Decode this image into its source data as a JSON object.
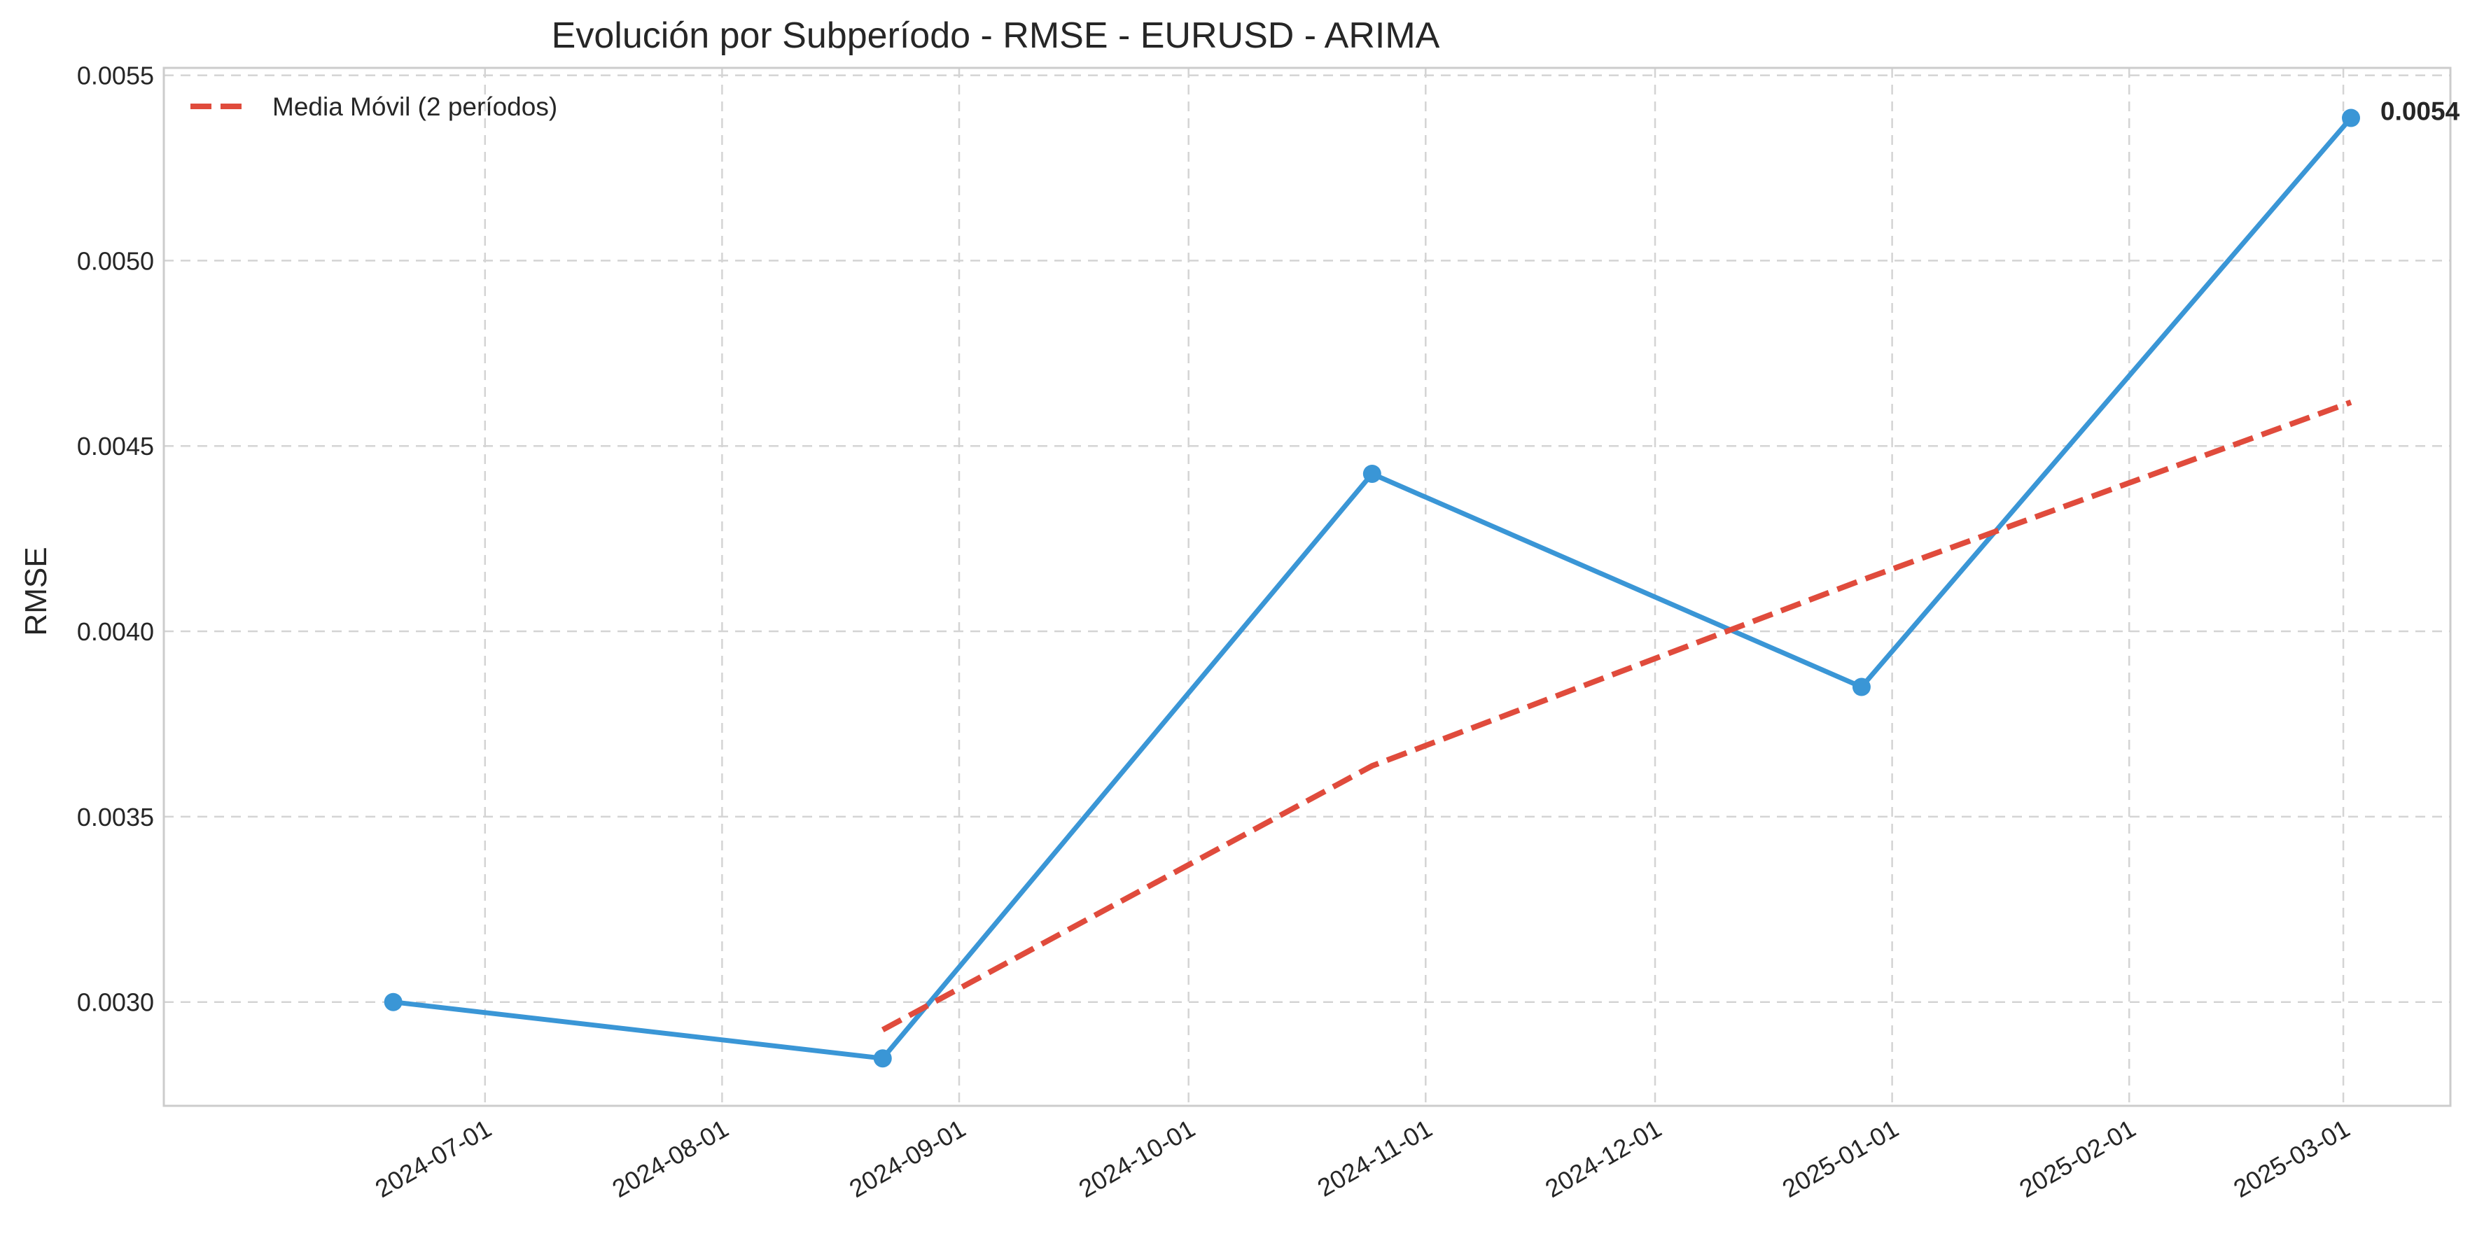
{
  "chart_data": {
    "type": "line",
    "title": "Evolución por Subperíodo - RMSE - EURUSD - ARIMA",
    "xlabel": "",
    "ylabel": "RMSE",
    "x_tick_labels": [
      "2024-07-01",
      "2024-08-01",
      "2024-09-01",
      "2024-10-01",
      "2024-11-01",
      "2024-12-01",
      "2025-01-01",
      "2025-02-01",
      "2025-03-01"
    ],
    "y_tick_labels": [
      "0.0030",
      "0.0035",
      "0.0040",
      "0.0045",
      "0.0050",
      "0.0055"
    ],
    "ylim": [
      0.00272,
      0.00552
    ],
    "xlim": [
      "2024-05-20",
      "2025-03-15"
    ],
    "grid": true,
    "legend_position": "top-left",
    "series": [
      {
        "color": "#3a96d6",
        "style": "solid",
        "markers": true,
        "points": [
          {
            "x": "2024-06-19",
            "y": 0.003
          },
          {
            "x": "2024-08-22",
            "y": 0.002848
          },
          {
            "x": "2024-10-25",
            "y": 0.004425
          },
          {
            "x": "2024-12-28",
            "y": 0.00385
          },
          {
            "x": "2025-03-02",
            "y": 0.005385
          }
        ]
      },
      {
        "name": "Media Móvil (2 períodos)",
        "color": "#e04b3c",
        "style": "dashed",
        "markers": false,
        "points": [
          {
            "x": "2024-08-22",
            "y": 0.002925
          },
          {
            "x": "2024-10-25",
            "y": 0.003637
          },
          {
            "x": "2024-12-28",
            "y": 0.004138
          },
          {
            "x": "2025-03-02",
            "y": 0.004618
          }
        ]
      }
    ],
    "annotations": [
      {
        "series": 0,
        "point": 4,
        "text": "0.0054"
      }
    ]
  }
}
